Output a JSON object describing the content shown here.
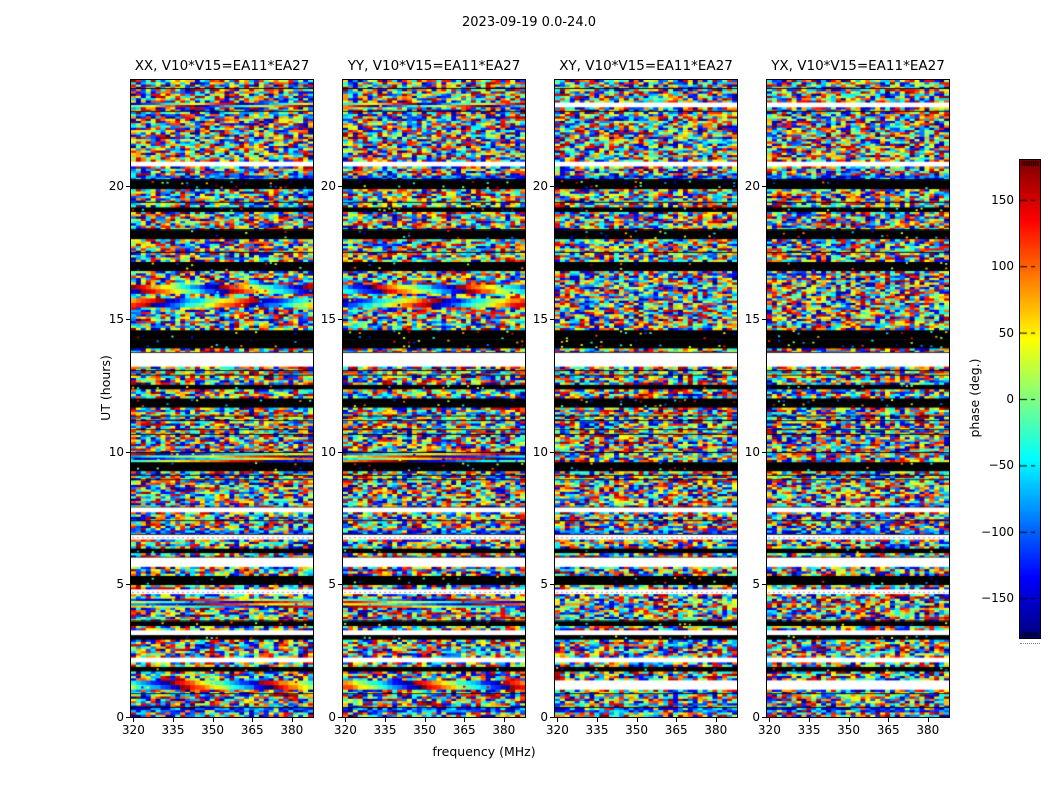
{
  "figure": {
    "title": "2023-09-19 0.0-24.0",
    "xlabel": "frequency (MHz)",
    "ylabel": "UT (hours)",
    "colorbar_label": "phase (deg.)"
  },
  "chart_data": {
    "type": "heatmap",
    "title": "2023-09-19 0.0-24.0",
    "subplots": [
      {
        "label": "XX",
        "title": "XX, V10*V15=EA11*EA27",
        "content": "interferometric phase vs frequency and time; random phase noise with coherent wrapped-gradient bands, white gap rows and black flagged rows"
      },
      {
        "label": "YY",
        "title": "YY, V10*V15=EA11*EA27",
        "content": "interferometric phase vs frequency and time; random phase noise with coherent wrapped-gradient bands, white gap rows and black flagged rows"
      },
      {
        "label": "XY",
        "title": "XY, V10*V15=EA11*EA27",
        "content": "interferometric phase vs frequency and time; mostly random phase noise with white gap rows and black flagged rows"
      },
      {
        "label": "YX",
        "title": "YX, V10*V15=EA11*EA27",
        "content": "interferometric phase vs frequency and time; mostly random phase noise with white gap rows and black flagged rows"
      }
    ],
    "xlabel": "frequency (MHz)",
    "ylabel": "UT (hours)",
    "x_ticks": [
      320,
      335,
      350,
      365,
      380
    ],
    "x_range_mhz": [
      319.1,
      388
    ],
    "y_ticks": [
      0,
      5,
      10,
      15,
      20
    ],
    "y_range_hours": [
      0,
      24
    ],
    "colorbar": {
      "label": "phase (deg.)",
      "ticks": [
        150,
        100,
        50,
        0,
        -50,
        -100,
        -150
      ],
      "range_deg": [
        -180,
        180
      ],
      "colormap": "jet"
    },
    "noise_seed": 20230919,
    "rows": 140,
    "cols": 37
  },
  "colors": {
    "axis": "#000000",
    "background": "#ffffff",
    "gap_dotted_line": "#999999"
  }
}
